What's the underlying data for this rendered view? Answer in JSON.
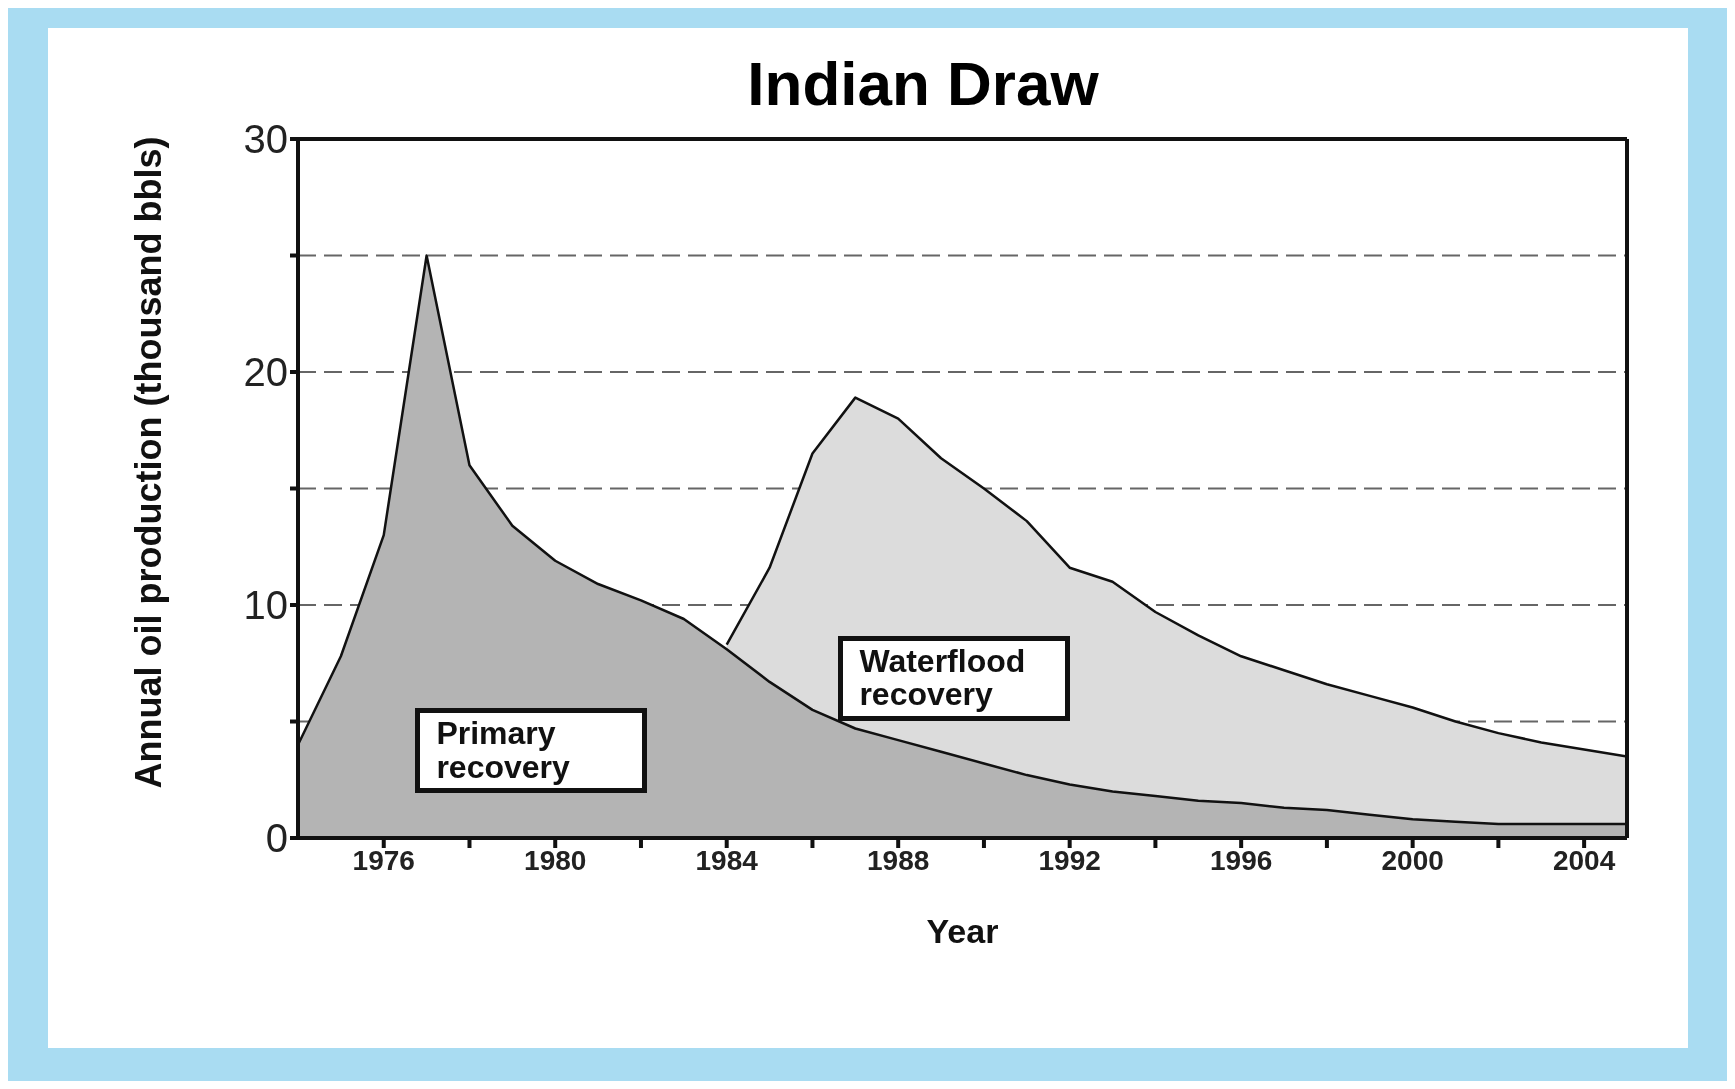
{
  "chart_data": {
    "type": "area",
    "title": "Indian Draw",
    "xlabel": "Year",
    "ylabel": "Annual oil production (thousand bbls)",
    "x": [
      1974,
      1975,
      1976,
      1977,
      1978,
      1979,
      1980,
      1981,
      1982,
      1983,
      1984,
      1985,
      1986,
      1987,
      1988,
      1989,
      1990,
      1991,
      1992,
      1993,
      1994,
      1995,
      1996,
      1997,
      1998,
      1999,
      2000,
      2001,
      2002,
      2003,
      2004,
      2005
    ],
    "series": [
      {
        "name": "Primary recovery",
        "color": "#b4b4b4",
        "values": [
          4.0,
          7.8,
          13,
          25,
          16,
          13.4,
          11.9,
          10.9,
          10.2,
          9.4,
          8.1,
          6.7,
          5.5,
          4.7,
          4.2,
          3.7,
          3.2,
          2.7,
          2.3,
          2.0,
          1.8,
          1.6,
          1.5,
          1.3,
          1.2,
          1.0,
          0.8,
          0.7,
          0.6,
          0.6,
          0.6,
          0.6
        ]
      },
      {
        "name": "Waterflood recovery",
        "color": "#dcdcdc",
        "values": [
          null,
          null,
          null,
          null,
          null,
          null,
          null,
          null,
          null,
          null,
          8.3,
          11.6,
          16.5,
          18.9,
          18.0,
          16.3,
          15.0,
          13.6,
          11.6,
          11.0,
          9.7,
          8.7,
          7.8,
          7.2,
          6.6,
          6.1,
          5.6,
          5.0,
          4.5,
          4.1,
          3.8,
          3.5
        ]
      }
    ],
    "xlim": [
      1974,
      2005
    ],
    "xticks": [
      1976,
      {
        "value": 1978,
        "label": null
      },
      1980,
      {
        "value": 1982,
        "label": null
      },
      1984,
      {
        "value": 1986,
        "label": null
      },
      1988,
      {
        "value": 1990,
        "label": null
      },
      1992,
      {
        "value": 1994,
        "label": null
      },
      1996,
      {
        "value": 1998,
        "label": null
      },
      2000,
      {
        "value": 2002,
        "label": null
      },
      2004
    ],
    "ylim": [
      0,
      30
    ],
    "yticks": [
      0,
      {
        "value": 5,
        "label": null
      },
      10,
      {
        "value": 15,
        "label": null
      },
      20,
      {
        "value": 25,
        "label": null
      },
      30
    ],
    "grid": "y"
  }
}
